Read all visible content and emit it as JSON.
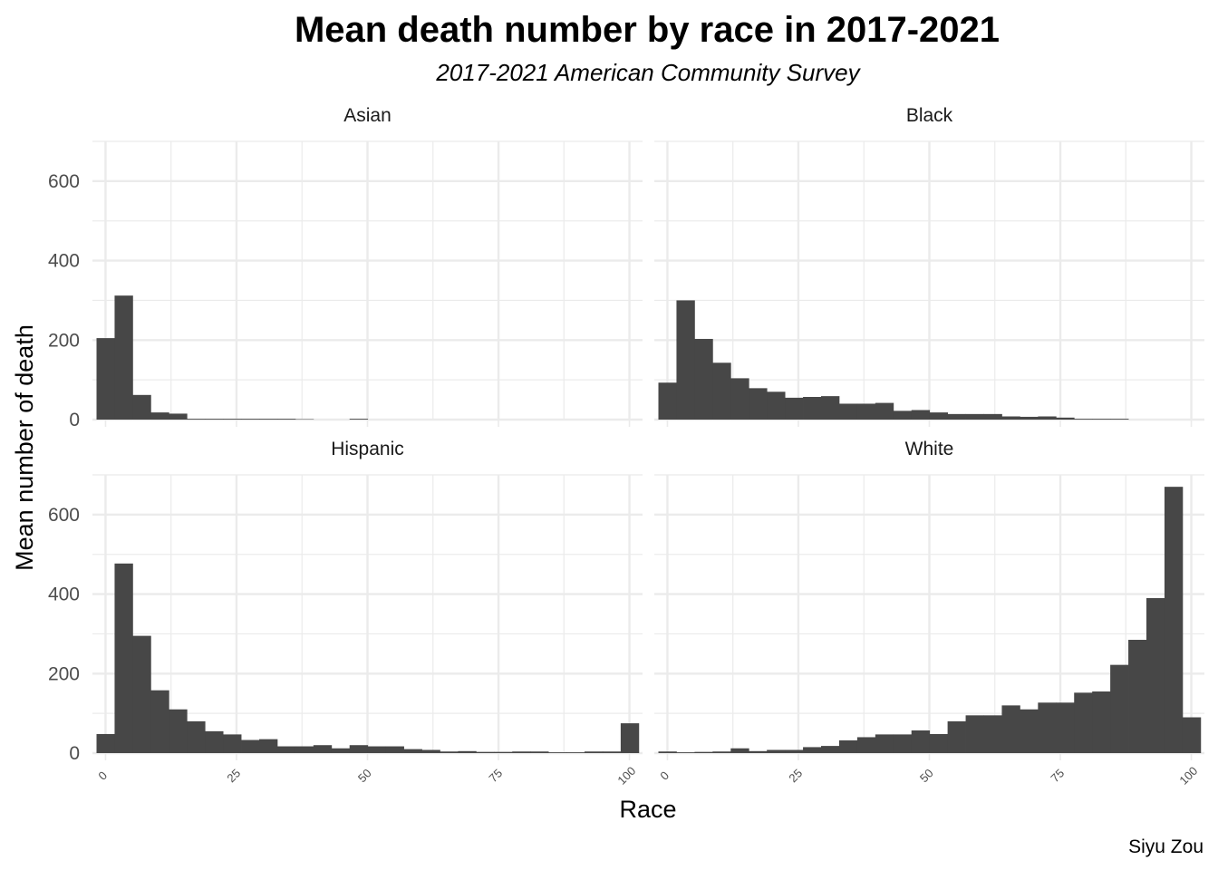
{
  "chart_data": {
    "type": "bar",
    "title": "Mean death number by race in 2017-2021",
    "subtitle": "2017-2021 American Community Survey",
    "xlabel": "Race",
    "ylabel": "Mean number of death",
    "caption": "Siyu Zou",
    "xlim": [
      -2.5,
      102.5
    ],
    "ylim": [
      0,
      700
    ],
    "x_ticks": [
      0,
      25,
      50,
      75,
      100
    ],
    "x_tick_labels": [
      "0",
      "25",
      "50",
      "75",
      "100"
    ],
    "y_ticks": [
      0,
      200,
      400,
      600
    ],
    "y_tick_labels": [
      "0",
      "200",
      "400",
      "600"
    ],
    "bin_width": 3.45,
    "bin_start": -1.72,
    "grid": true,
    "bar_color": "#474747",
    "panels": [
      {
        "name": "Asian",
        "values": [
          205,
          312,
          62,
          18,
          15,
          2,
          2,
          2,
          2,
          2,
          2,
          1,
          0,
          0,
          2,
          0,
          0,
          0,
          0,
          0,
          0,
          0,
          0,
          0,
          0,
          0,
          0,
          0,
          0,
          0
        ]
      },
      {
        "name": "Black",
        "values": [
          93,
          300,
          203,
          143,
          104,
          79,
          70,
          55,
          57,
          59,
          40,
          40,
          42,
          22,
          24,
          18,
          14,
          14,
          14,
          8,
          7,
          8,
          5,
          2,
          2,
          2,
          0,
          0,
          0,
          0
        ]
      },
      {
        "name": "Hispanic",
        "values": [
          48,
          477,
          295,
          158,
          110,
          80,
          55,
          47,
          33,
          35,
          17,
          17,
          20,
          12,
          20,
          17,
          17,
          10,
          8,
          4,
          5,
          3,
          3,
          4,
          4,
          2,
          2,
          4,
          4,
          75
        ]
      },
      {
        "name": "White",
        "values": [
          4,
          2,
          3,
          4,
          12,
          5,
          8,
          8,
          15,
          18,
          32,
          40,
          47,
          47,
          57,
          48,
          80,
          95,
          95,
          120,
          110,
          127,
          127,
          152,
          155,
          222,
          285,
          390,
          670,
          90
        ]
      }
    ]
  }
}
